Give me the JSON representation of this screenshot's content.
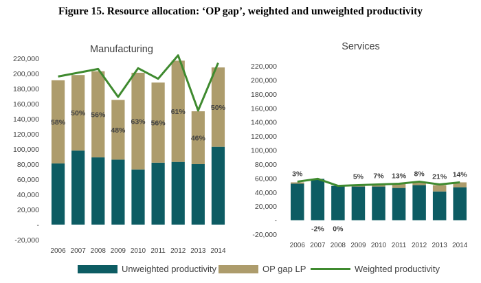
{
  "figure_title": "Figure 15. Resource allocation: ‘OP gap’, weighted and unweighted productivity",
  "colors": {
    "unweighted": "#0d5c63",
    "op_gap": "#ad9c6c",
    "weighted": "#3f8a2f",
    "axis_text": "#404040",
    "label_text": "#404040"
  },
  "legend": [
    {
      "key": "unweighted",
      "label": "Unweighted productivity",
      "kind": "box"
    },
    {
      "key": "op_gap",
      "label": "OP gap LP",
      "kind": "box"
    },
    {
      "key": "weighted",
      "label": "Weighted productivity",
      "kind": "line"
    }
  ],
  "chart_data": [
    {
      "type": "bar",
      "title": "Manufacturing",
      "categories": [
        "2006",
        "2007",
        "2008",
        "2009",
        "2010",
        "2011",
        "2012",
        "2013",
        "2014"
      ],
      "ylim": [
        -20000,
        220000
      ],
      "yticks": [
        -20000,
        0,
        20000,
        40000,
        60000,
        80000,
        100000,
        120000,
        140000,
        160000,
        180000,
        200000,
        220000
      ],
      "ytick_labels": [
        "-20,000",
        "-",
        "20,000",
        "40,000",
        "60,000",
        "80,000",
        "100,000",
        "120,000",
        "140,000",
        "160,000",
        "180,000",
        "200,000",
        "220,000"
      ],
      "stacked": true,
      "series": [
        {
          "name": "Unweighted productivity",
          "key": "unweighted",
          "values": [
            81000,
            98000,
            89000,
            86000,
            73000,
            82000,
            83000,
            80000,
            103000
          ]
        },
        {
          "name": "OP gap LP",
          "key": "op_gap",
          "values": [
            110000,
            100000,
            114000,
            79000,
            128000,
            106000,
            134000,
            70000,
            105000
          ]
        },
        {
          "name": "Weighted productivity",
          "key": "weighted",
          "kind": "line",
          "values": [
            196000,
            201000,
            206000,
            169000,
            207000,
            193000,
            224000,
            151000,
            214000
          ]
        }
      ],
      "data_labels": [
        "58%",
        "50%",
        "56%",
        "48%",
        "63%",
        "56%",
        "61%",
        "46%",
        "50%"
      ]
    },
    {
      "type": "bar",
      "title": "Services",
      "categories": [
        "2006",
        "2007",
        "2008",
        "2009",
        "2010",
        "2011",
        "2012",
        "2013",
        "2014"
      ],
      "ylim": [
        -20000,
        220000
      ],
      "yticks": [
        -20000,
        0,
        20000,
        40000,
        60000,
        80000,
        100000,
        120000,
        140000,
        160000,
        180000,
        200000,
        220000
      ],
      "ytick_labels": [
        "-20,000",
        "-",
        "20,000",
        "40,000",
        "60,000",
        "80,000",
        "100,000",
        "120,000",
        "140,000",
        "160,000",
        "180,000",
        "200,000",
        "220,000"
      ],
      "stacked": true,
      "series": [
        {
          "name": "Unweighted productivity",
          "key": "unweighted",
          "values": [
            52000,
            59000,
            49000,
            48000,
            48000,
            46000,
            50000,
            41000,
            47000
          ]
        },
        {
          "name": "OP gap LP",
          "key": "op_gap",
          "values": [
            2000,
            -1000,
            0,
            3000,
            4000,
            6000,
            4000,
            9000,
            7000
          ]
        },
        {
          "name": "Weighted productivity",
          "key": "weighted",
          "kind": "line",
          "values": [
            55000,
            59000,
            49000,
            50000,
            51000,
            52000,
            55000,
            51000,
            54000
          ]
        }
      ],
      "data_labels": [
        "3%",
        "-2%",
        "0%",
        "5%",
        "7%",
        "13%",
        "8%",
        "21%",
        "14%"
      ]
    }
  ]
}
